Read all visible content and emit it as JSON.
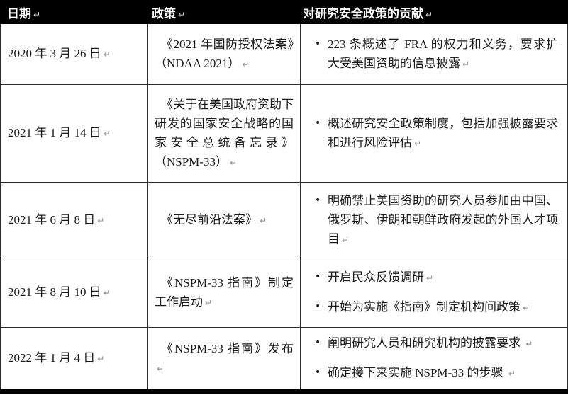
{
  "marks": {
    "eop": "↵",
    "bullet": "•"
  },
  "colors": {
    "header_bg": "#000000",
    "header_text": "#ffffff",
    "body_text": "#1b1b1b",
    "border": "#2e2e2e"
  },
  "table": {
    "headers": {
      "date": "日期",
      "policy": "政策",
      "contribution": "对研究安全政策的贡献"
    },
    "rows": [
      {
        "date": "2020 年 3 月 26 日",
        "policy": "《2021 年国防授权法案》（NDAA 2021）",
        "contributions": [
          "223 条概述了 FRA 的权力和义务，要求扩大受美国资助的信息披露"
        ]
      },
      {
        "date": "2021 年 1 月 14 日",
        "policy": "《关于在美国政府资助下研发的国家安全战略的国家安全总统备忘录》（NSPM-33）",
        "contributions": [
          "概述研究安全政策制度，包括加强披露要求和进行风险评估"
        ]
      },
      {
        "date": "2021 年 6 月 8 日",
        "policy": "《无尽前沿法案》",
        "contributions": [
          "明确禁止美国资助的研究人员参加由中国、俄罗斯、伊朗和朝鲜政府发起的外国人才项目"
        ]
      },
      {
        "date": "2021 年 8 月 10 日",
        "policy": "《NSPM-33 指南》制定工作启动",
        "contributions": [
          "开启民众反馈调研",
          "开始为实施《指南》制定机构间政策"
        ]
      },
      {
        "date": "2022 年 1 月 4 日",
        "policy": "《NSPM-33 指南》发布",
        "contributions": [
          "阐明研究人员和研究机构的披露要求",
          "确定接下来实施 NSPM-33 的步骤"
        ]
      }
    ]
  }
}
